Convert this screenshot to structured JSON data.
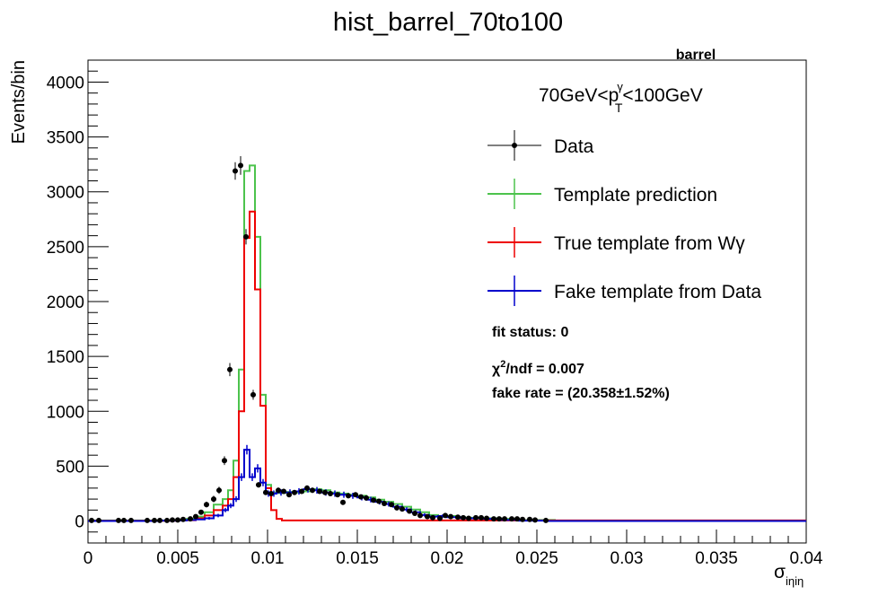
{
  "chart_data": {
    "type": "line",
    "title": "hist_barrel_70to100",
    "corner_label": "barrel",
    "xlabel": {
      "base": "σ",
      "sub": "iηiη"
    },
    "ylabel": "Events/bin",
    "xlim": [
      0,
      0.04
    ],
    "ylim": [
      -200,
      4200
    ],
    "x_ticks": [
      0,
      0.005,
      0.01,
      0.015,
      0.02,
      0.025,
      0.03,
      0.035,
      0.04
    ],
    "x_tick_labels": [
      "0",
      "0.005",
      "0.01",
      "0.015",
      "0.02",
      "0.025",
      "0.03",
      "0.035",
      "0.04"
    ],
    "y_ticks": [
      0,
      500,
      1000,
      1500,
      2000,
      2500,
      3000,
      3500,
      4000
    ],
    "y_tick_labels": [
      "0",
      "500",
      "1000",
      "1500",
      "2000",
      "2500",
      "3000",
      "3500",
      "4000"
    ],
    "grid": false,
    "legend_position": "top-right",
    "kinematic_label": {
      "pre": "70GeV<p",
      "sup": "γ",
      "sub": "T",
      "post": "<100GeV"
    },
    "annotations": {
      "fit_status": "fit status: 0",
      "chi2_pre": "χ",
      "chi2_sup": "2",
      "chi2_post": "/ndf = 0.007",
      "fake_rate": "fake rate = (20.358±1.52%)"
    },
    "colors": {
      "data": "#000000",
      "template": "#4cc34c",
      "true": "#ee0000",
      "fake": "#0000cc"
    },
    "series": [
      {
        "name": "Data",
        "key": "data",
        "style": "points",
        "x": [
          0.0002,
          0.0006,
          0.0017,
          0.002,
          0.0024,
          0.0033,
          0.0037,
          0.004,
          0.0044,
          0.0047,
          0.005,
          0.0053,
          0.0057,
          0.006,
          0.0063,
          0.0066,
          0.007,
          0.0073,
          0.0076,
          0.0079,
          0.0082,
          0.0085,
          0.0088,
          0.0092,
          0.0095,
          0.0099,
          0.0102,
          0.0106,
          0.0109,
          0.0112,
          0.0115,
          0.0119,
          0.0122,
          0.0125,
          0.0129,
          0.0132,
          0.0135,
          0.0139,
          0.0142,
          0.0145,
          0.0149,
          0.0152,
          0.0155,
          0.0159,
          0.0162,
          0.0165,
          0.0169,
          0.0172,
          0.0175,
          0.0179,
          0.0182,
          0.0185,
          0.0189,
          0.0192,
          0.0196,
          0.0199,
          0.0202,
          0.0206,
          0.0209,
          0.0212,
          0.0216,
          0.0219,
          0.0222,
          0.0226,
          0.0229,
          0.0232,
          0.0236,
          0.0239,
          0.0242,
          0.0246,
          0.0249,
          0.0255
        ],
        "y": [
          5,
          5,
          5,
          5,
          5,
          5,
          5,
          5,
          5,
          10,
          10,
          15,
          20,
          40,
          80,
          150,
          200,
          280,
          550,
          1380,
          3190,
          3240,
          2590,
          1150,
          330,
          260,
          250,
          280,
          270,
          240,
          260,
          270,
          300,
          280,
          270,
          260,
          250,
          240,
          170,
          230,
          240,
          220,
          210,
          190,
          180,
          160,
          150,
          120,
          110,
          90,
          70,
          50,
          40,
          30,
          25,
          50,
          40,
          35,
          30,
          25,
          30,
          30,
          25,
          20,
          20,
          20,
          20,
          20,
          15,
          15,
          10,
          5
        ],
        "yerr": [
          10,
          10,
          10,
          10,
          10,
          10,
          10,
          10,
          10,
          12,
          12,
          14,
          16,
          18,
          22,
          26,
          30,
          32,
          40,
          60,
          80,
          85,
          70,
          45,
          25,
          22,
          22,
          24,
          24,
          22,
          22,
          24,
          25,
          24,
          24,
          22,
          22,
          22,
          20,
          22,
          22,
          22,
          20,
          20,
          20,
          18,
          18,
          16,
          16,
          14,
          12,
          12,
          10,
          10,
          10,
          12,
          12,
          10,
          10,
          10,
          10,
          10,
          10,
          10,
          10,
          10,
          10,
          10,
          8,
          8,
          8,
          6
        ]
      },
      {
        "name": "Template prediction",
        "key": "template",
        "style": "step",
        "edges": [
          0,
          0.005,
          0.0055,
          0.006,
          0.0065,
          0.007,
          0.0075,
          0.0078,
          0.0081,
          0.0084,
          0.0087,
          0.009,
          0.0093,
          0.0096,
          0.0099,
          0.0102,
          0.0105,
          0.011,
          0.0115,
          0.012,
          0.0125,
          0.013,
          0.0135,
          0.014,
          0.0145,
          0.015,
          0.0155,
          0.016,
          0.0165,
          0.017,
          0.0175,
          0.018,
          0.0185,
          0.019,
          0.0195,
          0.02,
          0.0205,
          0.021,
          0.022,
          0.023,
          0.024,
          0.026,
          0.04
        ],
        "values": [
          5,
          10,
          20,
          40,
          80,
          150,
          200,
          280,
          550,
          1380,
          3190,
          3240,
          2590,
          1150,
          330,
          260,
          255,
          265,
          260,
          270,
          290,
          280,
          260,
          250,
          240,
          230,
          215,
          195,
          175,
          155,
          130,
          105,
          80,
          55,
          40,
          45,
          35,
          30,
          25,
          20,
          10,
          2
        ]
      },
      {
        "name": "True template from Wγ",
        "key": "true",
        "style": "step",
        "edges": [
          0,
          0.005,
          0.006,
          0.0065,
          0.007,
          0.0075,
          0.0078,
          0.0081,
          0.0084,
          0.0087,
          0.009,
          0.0093,
          0.0096,
          0.0099,
          0.0102,
          0.0105,
          0.0108,
          0.04
        ],
        "values": [
          2,
          8,
          25,
          50,
          100,
          140,
          200,
          400,
          1000,
          2580,
          2820,
          2110,
          1050,
          300,
          100,
          20,
          5
        ]
      },
      {
        "name": "Fake template from Data",
        "key": "fake",
        "style": "step-errors",
        "edges": [
          0,
          0.004,
          0.005,
          0.0055,
          0.006,
          0.0065,
          0.007,
          0.0075,
          0.0078,
          0.0081,
          0.0084,
          0.0087,
          0.009,
          0.0093,
          0.0096,
          0.0099,
          0.0102,
          0.0105,
          0.011,
          0.0115,
          0.012,
          0.0125,
          0.013,
          0.0135,
          0.014,
          0.0145,
          0.015,
          0.0155,
          0.016,
          0.0165,
          0.017,
          0.0175,
          0.018,
          0.0185,
          0.019,
          0.0195,
          0.02,
          0.0205,
          0.021,
          0.022,
          0.023,
          0.024,
          0.0255,
          0.04
        ],
        "values": [
          0,
          3,
          5,
          10,
          15,
          25,
          50,
          100,
          140,
          200,
          400,
          650,
          400,
          480,
          350,
          250,
          250,
          260,
          260,
          270,
          290,
          280,
          260,
          250,
          240,
          230,
          215,
          195,
          175,
          155,
          130,
          105,
          80,
          55,
          40,
          45,
          35,
          30,
          25,
          20,
          10,
          3,
          0
        ]
      }
    ]
  }
}
